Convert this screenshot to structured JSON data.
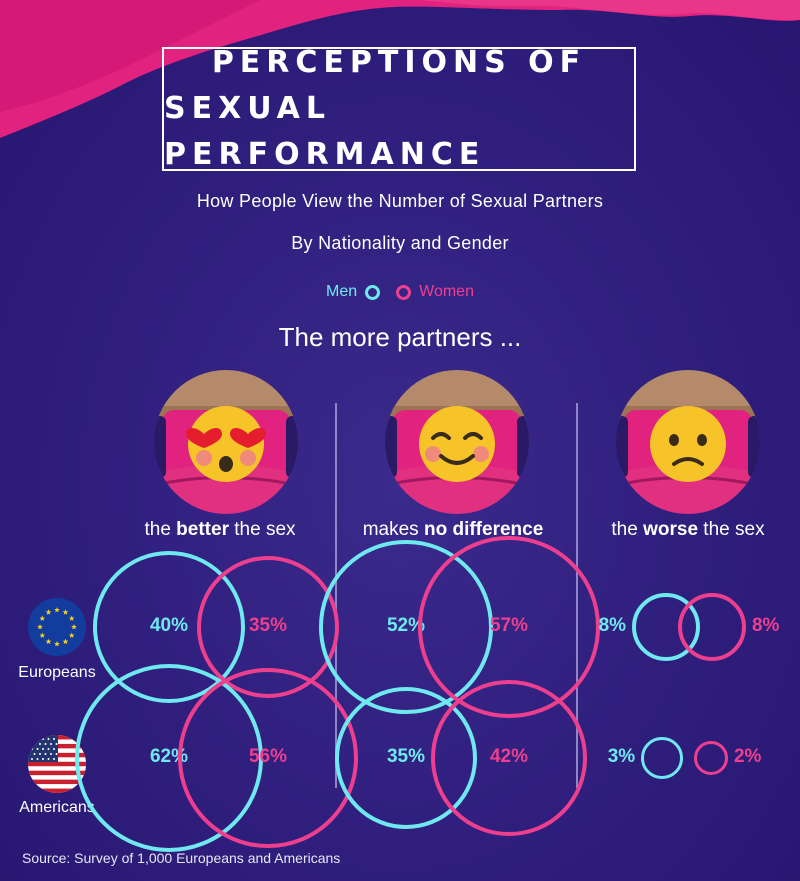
{
  "title": {
    "line1": "PERCEPTIONS OF",
    "line2": "SEXUAL PERFORMANCE"
  },
  "subtitle1": "How People View the Number of Sexual Partners",
  "subtitle2": "By Nationality and Gender",
  "legend": {
    "men": "Men",
    "women": "Women"
  },
  "lead": "The more partners ...",
  "categories": [
    {
      "pre": "the ",
      "bold": "better",
      "post": " the sex",
      "emoji": "heart-eyes-emoji-icon"
    },
    {
      "pre": "makes ",
      "bold": "no difference",
      "post": "",
      "emoji": "smiling-emoji-icon"
    },
    {
      "pre": "the ",
      "bold": "worse",
      "post": " the sex",
      "emoji": "frowning-emoji-icon"
    }
  ],
  "rows": [
    {
      "label": "Europeans",
      "flag": "eu-flag-icon"
    },
    {
      "label": "Americans",
      "flag": "us-flag-icon"
    }
  ],
  "source": "Source: Survey of 1,000 Europeans and Americans",
  "colors": {
    "men": "#6fe9ef",
    "women": "#ee3f8f",
    "background": "#2e1c79",
    "drape": "#e2227f"
  },
  "chart_data": {
    "type": "bubble",
    "categories": [
      "the better the sex",
      "makes no difference",
      "the worse the sex"
    ],
    "groups": [
      "Europeans",
      "Americans"
    ],
    "series": [
      {
        "name": "Men",
        "values": {
          "Europeans": [
            40,
            52,
            8
          ],
          "Americans": [
            62,
            35,
            3
          ]
        }
      },
      {
        "name": "Women",
        "values": {
          "Europeans": [
            35,
            57,
            8
          ],
          "Americans": [
            56,
            42,
            2
          ]
        }
      }
    ],
    "unit": "%"
  }
}
